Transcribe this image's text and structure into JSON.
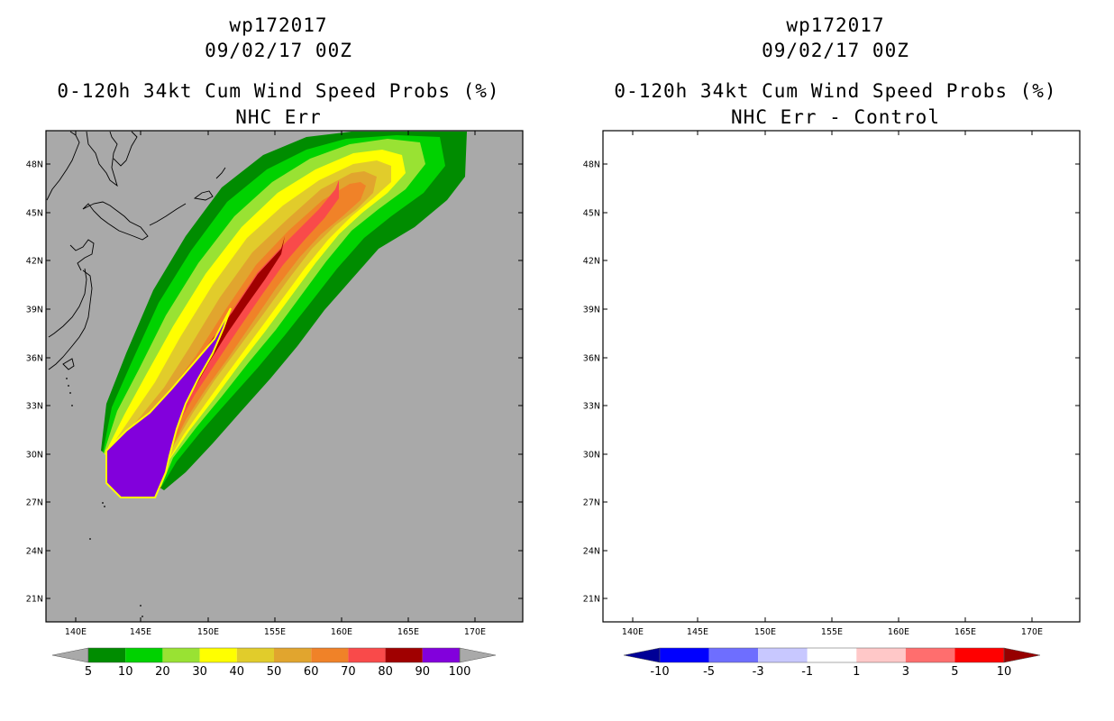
{
  "panels": [
    {
      "titles": [
        "wp172017",
        "09/02/17 00Z",
        "0-120h 34kt Cum Wind Speed Probs (%)",
        "NHC Err"
      ],
      "colorbar": {
        "labels": [
          "5",
          "10",
          "20",
          "30",
          "40",
          "50",
          "60",
          "70",
          "80",
          "90",
          "100"
        ],
        "colors": [
          "#a9a9a9",
          "#008c00",
          "#00d200",
          "#99e233",
          "#ffff00",
          "#e1cc2b",
          "#e1a52e",
          "#f08228",
          "#f94a4a",
          "#a00000",
          "#8200dc",
          "#a9a9a9"
        ]
      }
    },
    {
      "titles": [
        "wp172017",
        "09/02/17 00Z",
        "0-120h 34kt Cum Wind Speed Probs (%)",
        "NHC Err - Control"
      ],
      "colorbar": {
        "labels": [
          "-10",
          "-5",
          "-3",
          "-1",
          "1",
          "3",
          "5",
          "10"
        ],
        "colors": [
          "#000096",
          "#0000ff",
          "#6e6eff",
          "#c8c8ff",
          "#ffffff",
          "#ffc8c8",
          "#ff6e6e",
          "#ff0000",
          "#960000"
        ]
      }
    }
  ],
  "map": {
    "lon_labels": [
      "140E",
      "145E",
      "150E",
      "155E",
      "160E",
      "165E",
      "170E"
    ],
    "lat_labels": [
      "48N",
      "45N",
      "42N",
      "39N",
      "36N",
      "33N",
      "30N",
      "27N",
      "24N",
      "21N"
    ],
    "colors": {
      "ocean_gray": "#a9a9a9",
      "coast": "#000000",
      "grid": "#bbbbbb"
    }
  }
}
